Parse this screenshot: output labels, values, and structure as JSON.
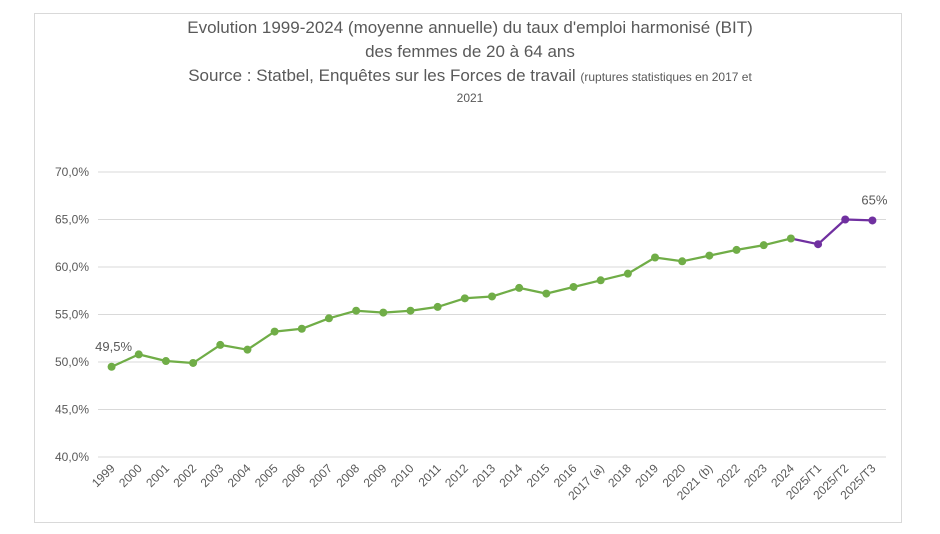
{
  "chart_data": {
    "type": "line",
    "title_line1": "Evolution 1999-2024 (moyenne annuelle) du taux d'emploi harmonisé (BIT)",
    "title_line2": "des femmes de 20 à 64 ans",
    "title_line3": "Source : Statbel, Enquêtes sur les Forces de travail",
    "title_note": "(ruptures statistiques en 2017 et",
    "title_note2": "2021",
    "categories": [
      "1999",
      "2000",
      "2001",
      "2002",
      "2003",
      "2004",
      "2005",
      "2006",
      "2007",
      "2008",
      "2009",
      "2010",
      "2011",
      "2012",
      "2013",
      "2014",
      "2015",
      "2016",
      "2017 (a)",
      "2018",
      "2019",
      "2020",
      "2021 (b)",
      "2022",
      "2023",
      "2024",
      "2025/T1",
      "2025/T2",
      "2025/T3"
    ],
    "series": [
      {
        "color": "#70ad47",
        "values": [
          49.5,
          50.8,
          50.1,
          49.9,
          51.8,
          51.3,
          53.2,
          53.5,
          54.6,
          55.4,
          55.2,
          55.4,
          55.8,
          56.7,
          56.9,
          57.8,
          57.2,
          57.9,
          58.6,
          59.3,
          61.0,
          60.6,
          61.2,
          61.8,
          62.3,
          63.0,
          null,
          null,
          null
        ]
      },
      {
        "color": "#7030a0",
        "values": [
          null,
          null,
          null,
          null,
          null,
          null,
          null,
          null,
          null,
          null,
          null,
          null,
          null,
          null,
          null,
          null,
          null,
          null,
          null,
          null,
          null,
          null,
          null,
          null,
          null,
          63.0,
          62.4,
          65.0,
          64.9
        ]
      }
    ],
    "point_colors": [
      "#70ad47",
      "#70ad47",
      "#70ad47",
      "#70ad47",
      "#70ad47",
      "#70ad47",
      "#70ad47",
      "#70ad47",
      "#70ad47",
      "#70ad47",
      "#70ad47",
      "#70ad47",
      "#70ad47",
      "#70ad47",
      "#70ad47",
      "#70ad47",
      "#70ad47",
      "#70ad47",
      "#70ad47",
      "#70ad47",
      "#70ad47",
      "#70ad47",
      "#70ad47",
      "#70ad47",
      "#70ad47",
      "#70ad47",
      "#7030a0",
      "#7030a0",
      "#7030a0"
    ],
    "ylim": [
      40,
      70
    ],
    "yticks": [
      40,
      45,
      50,
      55,
      60,
      65,
      70
    ],
    "ytick_labels": [
      "40,0%",
      "45,0%",
      "50,0%",
      "55,0%",
      "60,0%",
      "65,0%",
      "70,0%"
    ],
    "grid": true,
    "data_labels": [
      {
        "index": 0,
        "text": "49,5%"
      },
      {
        "index": 28,
        "text": "65%"
      }
    ]
  }
}
